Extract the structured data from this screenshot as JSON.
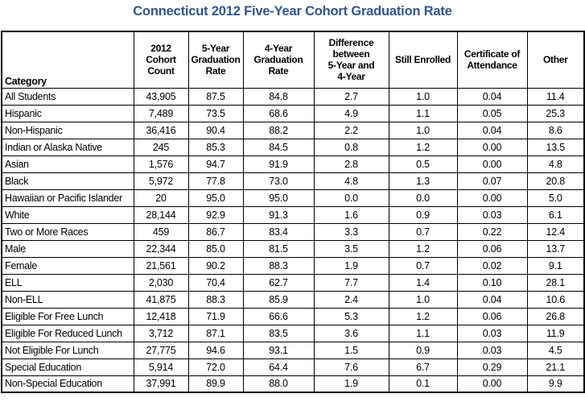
{
  "title": "Connecticut 2012 Five-Year Cohort Graduation Rate",
  "title_color": "#2F5496",
  "border_color": "#000000",
  "table": {
    "columns": [
      "Category",
      "2012\nCohort\nCount",
      "5-Year\nGraduation\nRate",
      "4-Year\nGraduation\nRate",
      "Difference\nbetween\n5-Year and\n4-Year",
      "Still Enrolled",
      "Certificate of\nAttendance",
      "Other"
    ],
    "rows": [
      {
        "category": "All Students",
        "values": [
          "43,905",
          "87.5",
          "84.8",
          "2.7",
          "1.0",
          "0.04",
          "11.4"
        ]
      },
      {
        "category": "Hispanic",
        "values": [
          "7,489",
          "73.5",
          "68.6",
          "4.9",
          "1.1",
          "0.05",
          "25.3"
        ]
      },
      {
        "category": "Non-Hispanic",
        "values": [
          "36,416",
          "90.4",
          "88.2",
          "2.2",
          "1.0",
          "0.04",
          "8.6"
        ]
      },
      {
        "category": "Indian or Alaska Native",
        "values": [
          "245",
          "85.3",
          "84.5",
          "0.8",
          "1.2",
          "0.00",
          "13.5"
        ]
      },
      {
        "category": "Asian",
        "values": [
          "1,576",
          "94.7",
          "91.9",
          "2.8",
          "0.5",
          "0.00",
          "4.8"
        ]
      },
      {
        "category": "Black",
        "values": [
          "5,972",
          "77.8",
          "73.0",
          "4.8",
          "1.3",
          "0.07",
          "20.8"
        ]
      },
      {
        "category": "Hawaiian or Pacific Islander",
        "values": [
          "20",
          "95.0",
          "95.0",
          "0.0",
          "0.0",
          "0.00",
          "5.0"
        ]
      },
      {
        "category": "White",
        "values": [
          "28,144",
          "92.9",
          "91.3",
          "1.6",
          "0.9",
          "0.03",
          "6.1"
        ]
      },
      {
        "category": "Two or More Races",
        "values": [
          "459",
          "86.7",
          "83.4",
          "3.3",
          "0.7",
          "0.22",
          "12.4"
        ]
      },
      {
        "category": "Male",
        "values": [
          "22,344",
          "85.0",
          "81.5",
          "3.5",
          "1.2",
          "0.06",
          "13.7"
        ]
      },
      {
        "category": "Female",
        "values": [
          "21,561",
          "90.2",
          "88.3",
          "1.9",
          "0.7",
          "0.02",
          "9.1"
        ]
      },
      {
        "category": "ELL",
        "values": [
          "2,030",
          "70.4",
          "62.7",
          "7.7",
          "1.4",
          "0.10",
          "28.1"
        ]
      },
      {
        "category": "Non-ELL",
        "values": [
          "41,875",
          "88.3",
          "85.9",
          "2.4",
          "1.0",
          "0.04",
          "10.6"
        ]
      },
      {
        "category": "Eligible For Free Lunch",
        "values": [
          "12,418",
          "71.9",
          "66.6",
          "5.3",
          "1.2",
          "0.06",
          "26.8"
        ]
      },
      {
        "category": "Eligible For Reduced Lunch",
        "values": [
          "3,712",
          "87.1",
          "83.5",
          "3.6",
          "1.1",
          "0.03",
          "11.9"
        ]
      },
      {
        "category": "Not Eligible For Lunch",
        "values": [
          "27,775",
          "94.6",
          "93.1",
          "1.5",
          "0.9",
          "0.03",
          "4.5"
        ]
      },
      {
        "category": "Special Education",
        "values": [
          "5,914",
          "72.0",
          "64.4",
          "7.6",
          "6.7",
          "0.29",
          "21.1"
        ]
      },
      {
        "category": "Non-Special Education",
        "values": [
          "37,991",
          "89.9",
          "88.0",
          "1.9",
          "0.1",
          "0.00",
          "9.9"
        ]
      }
    ]
  }
}
